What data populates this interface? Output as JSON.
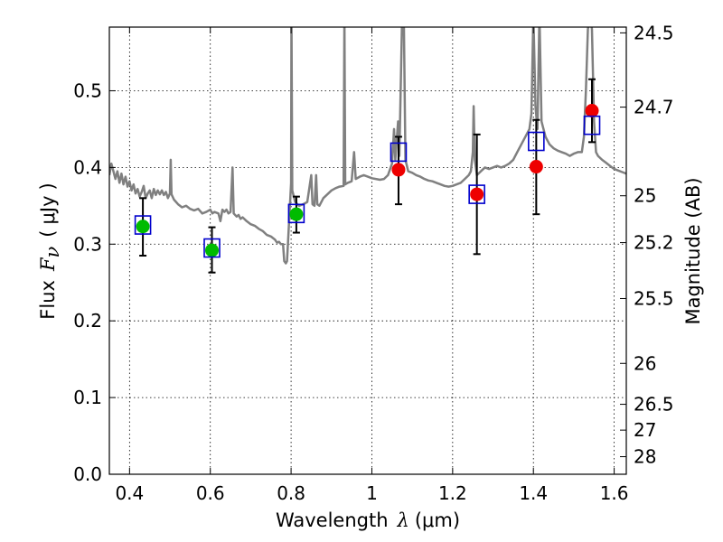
{
  "chart_data": {
    "type": "scatter",
    "title": "",
    "xlabel": "Wavelength",
    "xlabel_symbol": "λ",
    "xlabel_unit": "(μm)",
    "ylabel": "Flux",
    "ylabel_symbol": "F",
    "ylabel_subscript": "ν",
    "ylabel_unit_open": "(",
    "ylabel_unit": "μJy",
    "ylabel_unit_close": ")",
    "y2label": "Magnitude (AB)",
    "xlim": [
      0.35,
      1.63
    ],
    "ylim": [
      0.0,
      0.583
    ],
    "grid": true,
    "legend": "none",
    "x_ticks": [
      {
        "value": 0.4,
        "label": "0.4"
      },
      {
        "value": 0.6,
        "label": "0.6"
      },
      {
        "value": 0.8,
        "label": "0.8"
      },
      {
        "value": 1.0,
        "label": "1"
      },
      {
        "value": 1.2,
        "label": "1.2"
      },
      {
        "value": 1.4,
        "label": "1.4"
      },
      {
        "value": 1.6,
        "label": "1.6"
      }
    ],
    "y_ticks": [
      {
        "value": 0.0,
        "label": "0.0"
      },
      {
        "value": 0.1,
        "label": "0.1"
      },
      {
        "value": 0.2,
        "label": "0.2"
      },
      {
        "value": 0.3,
        "label": "0.3"
      },
      {
        "value": 0.4,
        "label": "0.4"
      },
      {
        "value": 0.5,
        "label": "0.5"
      }
    ],
    "y2_ticks": [
      {
        "value": 24.5,
        "label": "24.5"
      },
      {
        "value": 24.7,
        "label": "24.7"
      },
      {
        "value": 25.0,
        "label": "25"
      },
      {
        "value": 25.2,
        "label": "25.2"
      },
      {
        "value": 25.5,
        "label": "25.5"
      },
      {
        "value": 26.0,
        "label": "26"
      },
      {
        "value": 26.5,
        "label": "26.5"
      },
      {
        "value": 27.0,
        "label": "27"
      },
      {
        "value": 28.0,
        "label": "28"
      }
    ],
    "colors": {
      "model": "#808080",
      "green": "#00bb00",
      "red": "#ee0000",
      "box": "#0000cc",
      "errorbar": "#000000"
    },
    "model_spectrum": [
      [
        0.35,
        0.39
      ],
      [
        0.355,
        0.405
      ],
      [
        0.36,
        0.395
      ],
      [
        0.365,
        0.385
      ],
      [
        0.37,
        0.395
      ],
      [
        0.375,
        0.38
      ],
      [
        0.38,
        0.392
      ],
      [
        0.385,
        0.378
      ],
      [
        0.39,
        0.388
      ],
      [
        0.395,
        0.375
      ],
      [
        0.4,
        0.382
      ],
      [
        0.405,
        0.37
      ],
      [
        0.41,
        0.378
      ],
      [
        0.415,
        0.366
      ],
      [
        0.42,
        0.372
      ],
      [
        0.425,
        0.362
      ],
      [
        0.43,
        0.368
      ],
      [
        0.435,
        0.376
      ],
      [
        0.44,
        0.36
      ],
      [
        0.445,
        0.366
      ],
      [
        0.45,
        0.37
      ],
      [
        0.455,
        0.36
      ],
      [
        0.46,
        0.372
      ],
      [
        0.465,
        0.364
      ],
      [
        0.47,
        0.37
      ],
      [
        0.475,
        0.365
      ],
      [
        0.48,
        0.37
      ],
      [
        0.485,
        0.364
      ],
      [
        0.49,
        0.368
      ],
      [
        0.495,
        0.36
      ],
      [
        0.5,
        0.366
      ],
      [
        0.502,
        0.41
      ],
      [
        0.504,
        0.365
      ],
      [
        0.51,
        0.358
      ],
      [
        0.52,
        0.352
      ],
      [
        0.53,
        0.348
      ],
      [
        0.54,
        0.35
      ],
      [
        0.55,
        0.346
      ],
      [
        0.56,
        0.344
      ],
      [
        0.57,
        0.346
      ],
      [
        0.58,
        0.34
      ],
      [
        0.59,
        0.342
      ],
      [
        0.6,
        0.345
      ],
      [
        0.605,
        0.34
      ],
      [
        0.61,
        0.342
      ],
      [
        0.62,
        0.34
      ],
      [
        0.625,
        0.33
      ],
      [
        0.63,
        0.345
      ],
      [
        0.635,
        0.342
      ],
      [
        0.64,
        0.345
      ],
      [
        0.645,
        0.34
      ],
      [
        0.65,
        0.342
      ],
      [
        0.655,
        0.4
      ],
      [
        0.658,
        0.34
      ],
      [
        0.665,
        0.336
      ],
      [
        0.67,
        0.338
      ],
      [
        0.675,
        0.333
      ],
      [
        0.68,
        0.335
      ],
      [
        0.69,
        0.33
      ],
      [
        0.7,
        0.326
      ],
      [
        0.71,
        0.324
      ],
      [
        0.72,
        0.32
      ],
      [
        0.73,
        0.317
      ],
      [
        0.74,
        0.312
      ],
      [
        0.75,
        0.31
      ],
      [
        0.76,
        0.306
      ],
      [
        0.765,
        0.302
      ],
      [
        0.77,
        0.303
      ],
      [
        0.775,
        0.3
      ],
      [
        0.78,
        0.3
      ],
      [
        0.783,
        0.278
      ],
      [
        0.787,
        0.275
      ],
      [
        0.79,
        0.278
      ],
      [
        0.795,
        0.33
      ],
      [
        0.8,
        0.38
      ],
      [
        0.801,
        0.6
      ],
      [
        0.803,
        0.37
      ],
      [
        0.81,
        0.355
      ],
      [
        0.82,
        0.35
      ],
      [
        0.83,
        0.352
      ],
      [
        0.84,
        0.355
      ],
      [
        0.85,
        0.39
      ],
      [
        0.853,
        0.352
      ],
      [
        0.858,
        0.35
      ],
      [
        0.862,
        0.39
      ],
      [
        0.865,
        0.352
      ],
      [
        0.87,
        0.35
      ],
      [
        0.875,
        0.355
      ],
      [
        0.88,
        0.36
      ],
      [
        0.89,
        0.365
      ],
      [
        0.9,
        0.37
      ],
      [
        0.91,
        0.373
      ],
      [
        0.92,
        0.375
      ],
      [
        0.93,
        0.376
      ],
      [
        0.932,
        0.6
      ],
      [
        0.934,
        0.378
      ],
      [
        0.94,
        0.38
      ],
      [
        0.95,
        0.382
      ],
      [
        0.956,
        0.42
      ],
      [
        0.96,
        0.385
      ],
      [
        0.97,
        0.388
      ],
      [
        0.98,
        0.39
      ],
      [
        0.99,
        0.388
      ],
      [
        1.0,
        0.386
      ],
      [
        1.01,
        0.385
      ],
      [
        1.02,
        0.384
      ],
      [
        1.03,
        0.385
      ],
      [
        1.04,
        0.39
      ],
      [
        1.05,
        0.405
      ],
      [
        1.055,
        0.45
      ],
      [
        1.058,
        0.41
      ],
      [
        1.065,
        0.46
      ],
      [
        1.068,
        0.415
      ],
      [
        1.075,
        0.6
      ],
      [
        1.079,
        0.6
      ],
      [
        1.083,
        0.41
      ],
      [
        1.09,
        0.395
      ],
      [
        1.1,
        0.393
      ],
      [
        1.11,
        0.39
      ],
      [
        1.12,
        0.388
      ],
      [
        1.13,
        0.385
      ],
      [
        1.14,
        0.383
      ],
      [
        1.15,
        0.382
      ],
      [
        1.16,
        0.38
      ],
      [
        1.17,
        0.378
      ],
      [
        1.18,
        0.376
      ],
      [
        1.19,
        0.375
      ],
      [
        1.2,
        0.376
      ],
      [
        1.21,
        0.378
      ],
      [
        1.22,
        0.38
      ],
      [
        1.23,
        0.385
      ],
      [
        1.24,
        0.39
      ],
      [
        1.245,
        0.395
      ],
      [
        1.25,
        0.42
      ],
      [
        1.252,
        0.48
      ],
      [
        1.255,
        0.41
      ],
      [
        1.26,
        0.39
      ],
      [
        1.27,
        0.395
      ],
      [
        1.28,
        0.4
      ],
      [
        1.29,
        0.398
      ],
      [
        1.3,
        0.4
      ],
      [
        1.31,
        0.402
      ],
      [
        1.32,
        0.4
      ],
      [
        1.33,
        0.402
      ],
      [
        1.34,
        0.405
      ],
      [
        1.35,
        0.41
      ],
      [
        1.36,
        0.42
      ],
      [
        1.37,
        0.43
      ],
      [
        1.38,
        0.44
      ],
      [
        1.39,
        0.45
      ],
      [
        1.395,
        0.47
      ],
      [
        1.4,
        0.6
      ],
      [
        1.405,
        0.48
      ],
      [
        1.41,
        0.45
      ],
      [
        1.415,
        0.6
      ],
      [
        1.42,
        0.46
      ],
      [
        1.43,
        0.44
      ],
      [
        1.44,
        0.43
      ],
      [
        1.45,
        0.425
      ],
      [
        1.46,
        0.422
      ],
      [
        1.47,
        0.42
      ],
      [
        1.48,
        0.418
      ],
      [
        1.49,
        0.415
      ],
      [
        1.5,
        0.418
      ],
      [
        1.51,
        0.42
      ],
      [
        1.52,
        0.42
      ],
      [
        1.525,
        0.44
      ],
      [
        1.53,
        0.5
      ],
      [
        1.535,
        0.58
      ],
      [
        1.54,
        0.6
      ],
      [
        1.545,
        0.58
      ],
      [
        1.55,
        0.46
      ],
      [
        1.555,
        0.42
      ],
      [
        1.56,
        0.415
      ],
      [
        1.57,
        0.41
      ],
      [
        1.58,
        0.406
      ],
      [
        1.59,
        0.402
      ],
      [
        1.6,
        0.398
      ],
      [
        1.61,
        0.396
      ],
      [
        1.62,
        0.394
      ],
      [
        1.63,
        0.392
      ]
    ],
    "points": [
      {
        "x": 0.433,
        "y": 0.323,
        "yerr_low": 0.285,
        "yerr_high": 0.36,
        "color": "green"
      },
      {
        "x": 0.604,
        "y": 0.292,
        "yerr_low": 0.263,
        "yerr_high": 0.322,
        "color": "green"
      },
      {
        "x": 0.813,
        "y": 0.339,
        "yerr_low": 0.315,
        "yerr_high": 0.362,
        "color": "green"
      },
      {
        "x": 1.066,
        "y": 0.397,
        "yerr_low": 0.352,
        "yerr_high": 0.44,
        "color": "red"
      },
      {
        "x": 1.26,
        "y": 0.365,
        "yerr_low": 0.287,
        "yerr_high": 0.443,
        "color": "red"
      },
      {
        "x": 1.407,
        "y": 0.401,
        "yerr_low": 0.339,
        "yerr_high": 0.462,
        "color": "red"
      },
      {
        "x": 1.545,
        "y": 0.474,
        "yerr_low": 0.433,
        "yerr_high": 0.515,
        "color": "red"
      }
    ],
    "model_boxes": [
      {
        "x": 0.433,
        "y": 0.325
      },
      {
        "x": 0.604,
        "y": 0.295
      },
      {
        "x": 0.813,
        "y": 0.34
      },
      {
        "x": 1.066,
        "y": 0.42
      },
      {
        "x": 1.26,
        "y": 0.365
      },
      {
        "x": 1.407,
        "y": 0.434
      },
      {
        "x": 1.545,
        "y": 0.455
      }
    ]
  }
}
